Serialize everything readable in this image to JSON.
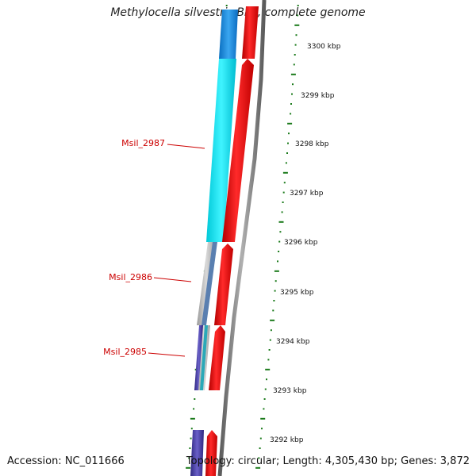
{
  "title": "Methylocella silvestris BL2, complete genome",
  "accession": "Accession: NC_011666",
  "summary": "Topology: circular; Length: 4,305,430 bp; Genes: 3,872",
  "genes": [
    {
      "label": "Msil_2987",
      "color": "#cc0000"
    },
    {
      "label": "Msil_2986",
      "color": "#cc0000"
    },
    {
      "label": "Msil_2985",
      "color": "#cc0000"
    }
  ],
  "ruler": {
    "unit": "kbp",
    "ticks": [
      "3300 kbp",
      "3299 kbp",
      "3298 kbp",
      "3297 kbp",
      "3296 kbp",
      "3295 kbp",
      "3294 kbp",
      "3293 kbp",
      "3292 kbp"
    ]
  },
  "colors": {
    "forward_feature": "#ff0000",
    "cyan_feature": "#00e5ee",
    "blue_feature": "#1e8fe0",
    "steel_feature": "#5a7fb0",
    "gray_feature": "#b5b5b5",
    "indigo_feature": "#4a3fa0",
    "backbone": "#7a7a7a",
    "tick_marks": "#1a7a1a"
  }
}
